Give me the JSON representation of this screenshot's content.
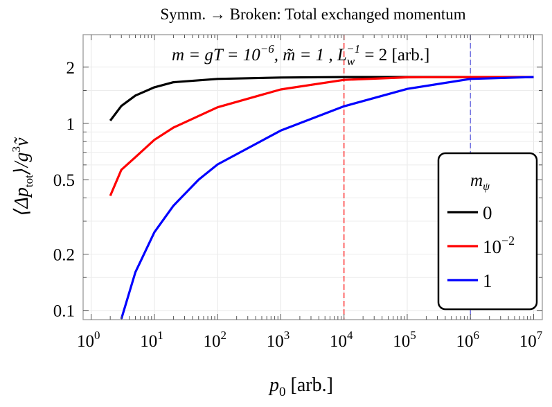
{
  "chart_data": {
    "type": "line",
    "title": "Symm. → Broken: Total exchanged momentum",
    "annotation": {
      "text_main": "m = gT = 10",
      "text_exp": "−6",
      "text_mid": ",  m̃ = 1  , L",
      "text_sub": "w",
      "text_sup": "−1",
      "text_end": " = 2 [arb.]"
    },
    "xlabel": {
      "base": "p",
      "sub": "0",
      "rest": " [arb.]"
    },
    "ylabel": {
      "left": "⟨Δp",
      "sub": "tot",
      "mid": "⟩/g",
      "sup": "3",
      "end": "ṽ"
    },
    "x_scale": "log",
    "y_scale": "log",
    "xlim": [
      1,
      10000000
    ],
    "ylim": [
      0.09,
      3
    ],
    "x_ticks": [
      {
        "value": 1,
        "base": "10",
        "exp": "0"
      },
      {
        "value": 10,
        "base": "10",
        "exp": "1"
      },
      {
        "value": 100,
        "base": "10",
        "exp": "2"
      },
      {
        "value": 1000,
        "base": "10",
        "exp": "3"
      },
      {
        "value": 10000,
        "base": "10",
        "exp": "4"
      },
      {
        "value": 100000,
        "base": "10",
        "exp": "5"
      },
      {
        "value": 1000000,
        "base": "10",
        "exp": "6"
      },
      {
        "value": 10000000,
        "base": "10",
        "exp": "7"
      }
    ],
    "y_ticks": [
      {
        "value": 2,
        "label": "2"
      },
      {
        "value": 1,
        "label": "1"
      },
      {
        "value": 0.5,
        "label": "0.5"
      },
      {
        "value": 0.2,
        "label": "0.2"
      },
      {
        "value": 0.1,
        "label": "0.1"
      }
    ],
    "grid": true,
    "legend": {
      "title_base": "m",
      "title_sub": "ψ",
      "placement": "bottom-right"
    },
    "vlines": [
      {
        "x": 10000,
        "color": "#ff0000",
        "style": "dashed"
      },
      {
        "x": 1000000,
        "color": "#5555dd",
        "style": "dashed"
      }
    ],
    "series": [
      {
        "name": "0",
        "name_base": "0",
        "name_exp": "",
        "color": "#000000",
        "x": [
          2,
          3,
          5,
          10,
          20,
          100,
          1000,
          10000,
          100000,
          1000000,
          10000000
        ],
        "y": [
          1.035,
          1.24,
          1.41,
          1.56,
          1.66,
          1.73,
          1.76,
          1.77,
          1.77,
          1.77,
          1.77
        ]
      },
      {
        "name": "10^-2",
        "name_base": "10",
        "name_exp": "−2",
        "color": "#ff0000",
        "x": [
          2,
          3,
          5,
          10,
          20,
          100,
          1000,
          10000,
          100000,
          1000000,
          10000000
        ],
        "y": [
          0.41,
          0.565,
          0.66,
          0.817,
          0.95,
          1.22,
          1.52,
          1.71,
          1.765,
          1.77,
          1.77
        ]
      },
      {
        "name": "1",
        "name_base": "1",
        "name_exp": "",
        "color": "#0000ff",
        "x": [
          3,
          5,
          10,
          20,
          50,
          100,
          1000,
          10000,
          100000,
          1000000,
          10000000
        ],
        "y": [
          0.09,
          0.16,
          0.262,
          0.363,
          0.5,
          0.604,
          0.916,
          1.235,
          1.53,
          1.73,
          1.77
        ]
      }
    ]
  }
}
